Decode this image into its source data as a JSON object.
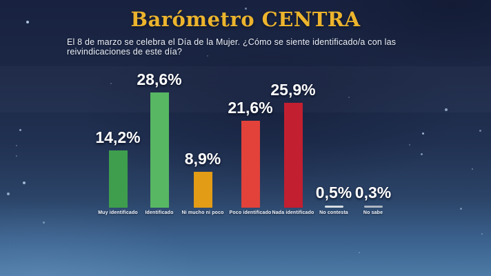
{
  "header": {
    "title": "Barómetro CENTRA",
    "question": "El 8 de marzo se celebra el Día de la Mujer. ¿Cómo se siente identificado/a con las reivindicaciones de este día?"
  },
  "colors": {
    "title_gold": "#ECB42D",
    "background_top": "#182240",
    "background_bottom": "#4D7AA6",
    "value_text": "#FFFFFF",
    "category_text": "#F2F5FA"
  },
  "chart_data": {
    "type": "bar",
    "title": "Barómetro CENTRA",
    "subtitle": "El 8 de marzo se celebra el Día de la Mujer. ¿Cómo se siente identificado/a con las reivindicaciones de este día?",
    "unit": "%",
    "xlabel": "",
    "ylabel": "",
    "ylim": [
      0,
      30
    ],
    "grid": false,
    "legend_position": "none",
    "categories": [
      "Muy identificado",
      "Identificado",
      "Ni mucho ni poco",
      "Poco identificado",
      "Nada identificado",
      "No contesta",
      "No sabe"
    ],
    "values": [
      14.2,
      28.6,
      8.9,
      21.6,
      25.9,
      0.5,
      0.3
    ],
    "value_labels": [
      "14,2%",
      "28,6%",
      "8,9%",
      "21,6%",
      "25,9%",
      "0,5%",
      "0,3%"
    ],
    "bar_colors": [
      "#3F9E4D",
      "#57B763",
      "#E29C15",
      "#E2423A",
      "#C21F30",
      "#D8DDE3",
      "#AEB6C2"
    ]
  }
}
